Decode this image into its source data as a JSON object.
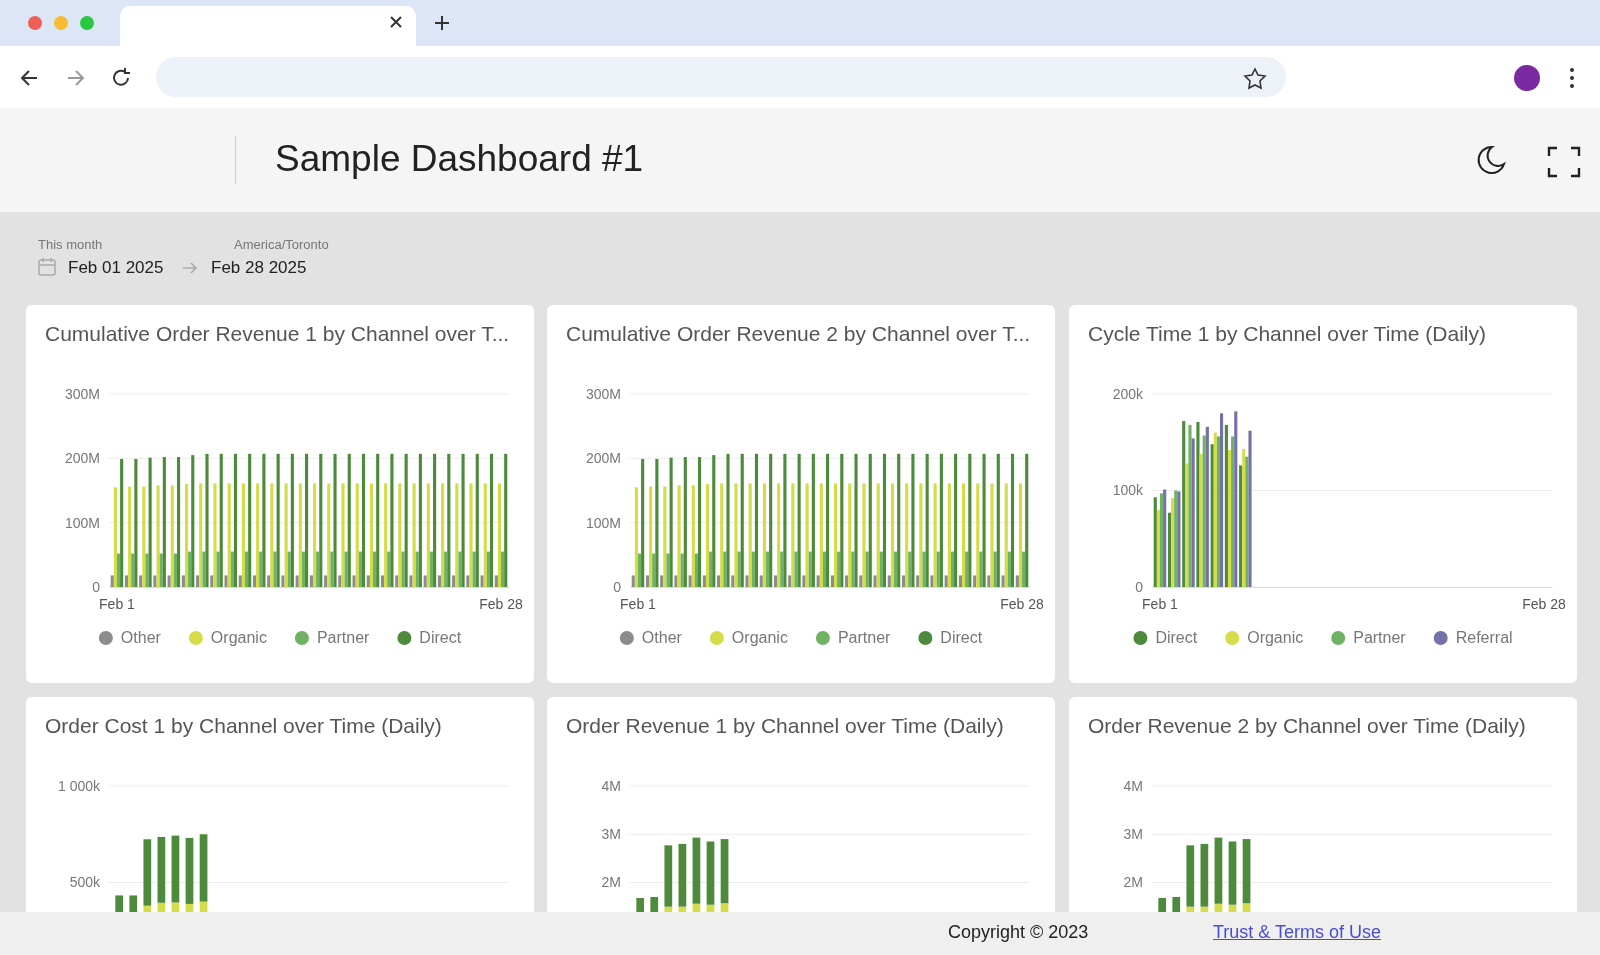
{
  "chart_data": [
    {
      "type": "other",
      "title": "Sample Dashboard #1",
      "annotations": [
        "This month",
        "America/Toronto",
        "Feb 01 2025",
        "Feb 28 2025",
        "Copyright © 2023",
        "Trust & Terms of Use"
      ]
    },
    {
      "type": "bar",
      "title": "Cumulative Order Revenue 1 by Channel over T...",
      "categories": [
        "Feb 1",
        null,
        null,
        null,
        null,
        null,
        null,
        null,
        null,
        null,
        null,
        null,
        null,
        null,
        null,
        null,
        null,
        null,
        null,
        null,
        null,
        null,
        null,
        null,
        null,
        null,
        null,
        "Feb 28"
      ],
      "ylim": [
        0,
        300000000
      ],
      "yticks": [
        {
          "value": 0,
          "label": "0"
        },
        {
          "value": 100000000,
          "label": "100M"
        },
        {
          "value": 200000000,
          "label": "200M"
        },
        {
          "value": 300000000,
          "label": "300M"
        }
      ],
      "grid": "y",
      "legend": "bottom",
      "series": [
        {
          "name": "Other",
          "color": "#8c8c8c",
          "values": [
            18000000,
            18000000,
            18000000,
            18000000,
            18000000,
            18000000,
            18000000,
            18000000,
            18000000,
            18000000,
            18000000,
            18000000,
            18000000,
            18000000,
            18000000,
            18000000,
            18000000,
            18000000,
            18000000,
            18000000,
            18000000,
            18000000,
            18000000,
            18000000,
            18000000,
            18000000,
            18000000,
            18000000
          ]
        },
        {
          "name": "Organic",
          "color": "#d4dc4a",
          "values": [
            155000000,
            156000000,
            156000000,
            158000000,
            158000000,
            160000000,
            161000000,
            161000000,
            161000000,
            161000000,
            161000000,
            161000000,
            161000000,
            161000000,
            161000000,
            161000000,
            161000000,
            161000000,
            161000000,
            161000000,
            161000000,
            161000000,
            161000000,
            161000000,
            161000000,
            161000000,
            161000000,
            161000000
          ]
        },
        {
          "name": "Partner",
          "color": "#6fb263",
          "values": [
            52000000,
            52000000,
            52000000,
            52000000,
            52000000,
            55000000,
            55000000,
            55000000,
            55000000,
            55000000,
            55000000,
            55000000,
            55000000,
            55000000,
            55000000,
            55000000,
            55000000,
            55000000,
            55000000,
            55000000,
            55000000,
            55000000,
            55000000,
            55000000,
            55000000,
            55000000,
            55000000,
            55000000
          ]
        },
        {
          "name": "Direct",
          "color": "#4e8a3c",
          "values": [
            199000000,
            199000000,
            201000000,
            202000000,
            202000000,
            205000000,
            207000000,
            207000000,
            207000000,
            207000000,
            207000000,
            207000000,
            207000000,
            207000000,
            207000000,
            207000000,
            207000000,
            207000000,
            207000000,
            207000000,
            207000000,
            207000000,
            207000000,
            207000000,
            207000000,
            207000000,
            207000000,
            207000000
          ]
        }
      ]
    },
    {
      "type": "bar",
      "title": "Cumulative Order Revenue 2 by Channel over T...",
      "categories": [
        "Feb 1",
        null,
        null,
        null,
        null,
        null,
        null,
        null,
        null,
        null,
        null,
        null,
        null,
        null,
        null,
        null,
        null,
        null,
        null,
        null,
        null,
        null,
        null,
        null,
        null,
        null,
        null,
        "Feb 28"
      ],
      "ylim": [
        0,
        300000000
      ],
      "yticks": [
        {
          "value": 0,
          "label": "0"
        },
        {
          "value": 100000000,
          "label": "100M"
        },
        {
          "value": 200000000,
          "label": "200M"
        },
        {
          "value": 300000000,
          "label": "300M"
        }
      ],
      "grid": "y",
      "legend": "bottom",
      "series": [
        {
          "name": "Other",
          "color": "#8c8c8c",
          "values": [
            18000000,
            18000000,
            18000000,
            18000000,
            18000000,
            18000000,
            18000000,
            18000000,
            18000000,
            18000000,
            18000000,
            18000000,
            18000000,
            18000000,
            18000000,
            18000000,
            18000000,
            18000000,
            18000000,
            18000000,
            18000000,
            18000000,
            18000000,
            18000000,
            18000000,
            18000000,
            18000000,
            18000000
          ]
        },
        {
          "name": "Organic",
          "color": "#d4dc4a",
          "values": [
            155000000,
            156000000,
            156000000,
            158000000,
            158000000,
            160000000,
            161000000,
            161000000,
            161000000,
            161000000,
            161000000,
            161000000,
            161000000,
            161000000,
            161000000,
            161000000,
            161000000,
            161000000,
            161000000,
            161000000,
            161000000,
            161000000,
            161000000,
            161000000,
            161000000,
            161000000,
            161000000,
            161000000
          ]
        },
        {
          "name": "Partner",
          "color": "#6fb263",
          "values": [
            52000000,
            52000000,
            52000000,
            52000000,
            52000000,
            55000000,
            55000000,
            55000000,
            55000000,
            55000000,
            55000000,
            55000000,
            55000000,
            55000000,
            55000000,
            55000000,
            55000000,
            55000000,
            55000000,
            55000000,
            55000000,
            55000000,
            55000000,
            55000000,
            55000000,
            55000000,
            55000000,
            55000000
          ]
        },
        {
          "name": "Direct",
          "color": "#4e8a3c",
          "values": [
            199000000,
            199000000,
            201000000,
            202000000,
            202000000,
            205000000,
            207000000,
            207000000,
            207000000,
            207000000,
            207000000,
            207000000,
            207000000,
            207000000,
            207000000,
            207000000,
            207000000,
            207000000,
            207000000,
            207000000,
            207000000,
            207000000,
            207000000,
            207000000,
            207000000,
            207000000,
            207000000,
            207000000
          ]
        }
      ]
    },
    {
      "type": "bar",
      "title": "Cycle Time 1 by Channel over Time (Daily)",
      "categories": [
        "Feb 1",
        null,
        null,
        null,
        null,
        null,
        null,
        null,
        null,
        null,
        null,
        null,
        null,
        null,
        null,
        null,
        null,
        null,
        null,
        null,
        null,
        null,
        null,
        null,
        null,
        null,
        null,
        "Feb 28"
      ],
      "ylim": [
        0,
        200000
      ],
      "yticks": [
        {
          "value": 0,
          "label": "0"
        },
        {
          "value": 100000,
          "label": "100k"
        },
        {
          "value": 200000,
          "label": "200k"
        }
      ],
      "grid": "y",
      "legend": "bottom",
      "series": [
        {
          "name": "Direct",
          "color": "#4e8a3c",
          "values": [
            93000,
            77000,
            172000,
            171000,
            148000,
            168000,
            126000,
            null,
            null,
            null,
            null,
            null,
            null,
            null,
            null,
            null,
            null,
            null,
            null,
            null,
            null,
            null,
            null,
            null,
            null,
            null,
            null,
            null
          ]
        },
        {
          "name": "Organic",
          "color": "#d4dc4a",
          "values": [
            80000,
            92000,
            128000,
            138000,
            160000,
            142000,
            143000,
            null,
            null,
            null,
            null,
            null,
            null,
            null,
            null,
            null,
            null,
            null,
            null,
            null,
            null,
            null,
            null,
            null,
            null,
            null,
            null,
            null
          ]
        },
        {
          "name": "Partner",
          "color": "#6fb263",
          "values": [
            97000,
            100000,
            168000,
            157000,
            156000,
            156000,
            135000,
            null,
            null,
            null,
            null,
            null,
            null,
            null,
            null,
            null,
            null,
            null,
            null,
            null,
            null,
            null,
            null,
            null,
            null,
            null,
            null,
            null
          ]
        },
        {
          "name": "Referral",
          "color": "#7470a8",
          "values": [
            101000,
            99000,
            154000,
            166000,
            180000,
            182000,
            162000,
            null,
            null,
            null,
            null,
            null,
            null,
            null,
            null,
            null,
            null,
            null,
            null,
            null,
            null,
            null,
            null,
            null,
            null,
            null,
            null,
            null
          ]
        }
      ]
    },
    {
      "type": "bar",
      "title": "Order Cost 1 by Channel over Time (Daily)",
      "categories": [
        null,
        null,
        null,
        null,
        null,
        null,
        null,
        null,
        null,
        null,
        null,
        null,
        null,
        null,
        null,
        null,
        null,
        null,
        null,
        null,
        null,
        null,
        null,
        null,
        null,
        null,
        null,
        null
      ],
      "ylim": [
        0,
        1000000
      ],
      "yticks": [
        {
          "value": 500000,
          "label": "500k"
        },
        {
          "value": 1000000,
          "label": "1 000k"
        }
      ],
      "grid": "y",
      "stacked": true,
      "series": [
        {
          "color": "#d4dc4a",
          "values": [
            null,
            null,
            380000,
            395000,
            397000,
            389000,
            401000,
            null,
            null,
            null,
            null,
            null,
            null,
            null,
            null,
            null,
            null,
            null,
            null,
            null,
            null,
            null,
            null,
            null,
            null,
            null,
            null,
            null
          ]
        },
        {
          "color": "#4e8a3c",
          "values": [
            433000,
            433000,
            344000,
            341000,
            346000,
            342000,
            349000,
            null,
            null,
            null,
            null,
            null,
            null,
            null,
            null,
            null,
            null,
            null,
            null,
            null,
            null,
            null,
            null,
            null,
            null,
            null,
            null,
            null
          ]
        }
      ]
    },
    {
      "type": "bar",
      "title": "Order Revenue 1 by Channel over Time (Daily)",
      "categories": [
        null,
        null,
        null,
        null,
        null,
        null,
        null,
        null,
        null,
        null,
        null,
        null,
        null,
        null,
        null,
        null,
        null,
        null,
        null,
        null,
        null,
        null,
        null,
        null,
        null,
        null,
        null,
        null
      ],
      "ylim": [
        0,
        4000000
      ],
      "yticks": [
        {
          "value": 2000000,
          "label": "2M"
        },
        {
          "value": 3000000,
          "label": "3M"
        },
        {
          "value": 4000000,
          "label": "4M"
        }
      ],
      "grid": "y",
      "stacked": true,
      "series": [
        {
          "color": "#d4dc4a",
          "values": [
            null,
            null,
            1500000,
            1500000,
            1560000,
            1540000,
            1570000,
            null,
            null,
            null,
            null,
            null,
            null,
            null,
            null,
            null,
            null,
            null,
            null,
            null,
            null,
            null,
            null,
            null,
            null,
            null,
            null,
            null
          ]
        },
        {
          "color": "#4e8a3c",
          "values": [
            1680000,
            1700000,
            1270000,
            1300000,
            1370000,
            1310000,
            1330000,
            null,
            null,
            null,
            null,
            null,
            null,
            null,
            null,
            null,
            null,
            null,
            null,
            null,
            null,
            null,
            null,
            null,
            null,
            null,
            null,
            null
          ]
        }
      ]
    },
    {
      "type": "bar",
      "title": "Order Revenue 2 by Channel over Time (Daily)",
      "categories": [
        null,
        null,
        null,
        null,
        null,
        null,
        null,
        null,
        null,
        null,
        null,
        null,
        null,
        null,
        null,
        null,
        null,
        null,
        null,
        null,
        null,
        null,
        null,
        null,
        null,
        null,
        null,
        null
      ],
      "ylim": [
        0,
        4000000
      ],
      "yticks": [
        {
          "value": 2000000,
          "label": "2M"
        },
        {
          "value": 3000000,
          "label": "3M"
        },
        {
          "value": 4000000,
          "label": "4M"
        }
      ],
      "grid": "y",
      "stacked": true,
      "series": [
        {
          "color": "#d4dc4a",
          "values": [
            null,
            null,
            1500000,
            1500000,
            1560000,
            1540000,
            1570000,
            null,
            null,
            null,
            null,
            null,
            null,
            null,
            null,
            null,
            null,
            null,
            null,
            null,
            null,
            null,
            null,
            null,
            null,
            null,
            null,
            null
          ]
        },
        {
          "color": "#4e8a3c",
          "values": [
            1680000,
            1700000,
            1270000,
            1300000,
            1370000,
            1310000,
            1330000,
            null,
            null,
            null,
            null,
            null,
            null,
            null,
            null,
            null,
            null,
            null,
            null,
            null,
            null,
            null,
            null,
            null,
            null,
            null,
            null,
            null
          ]
        }
      ]
    }
  ]
}
